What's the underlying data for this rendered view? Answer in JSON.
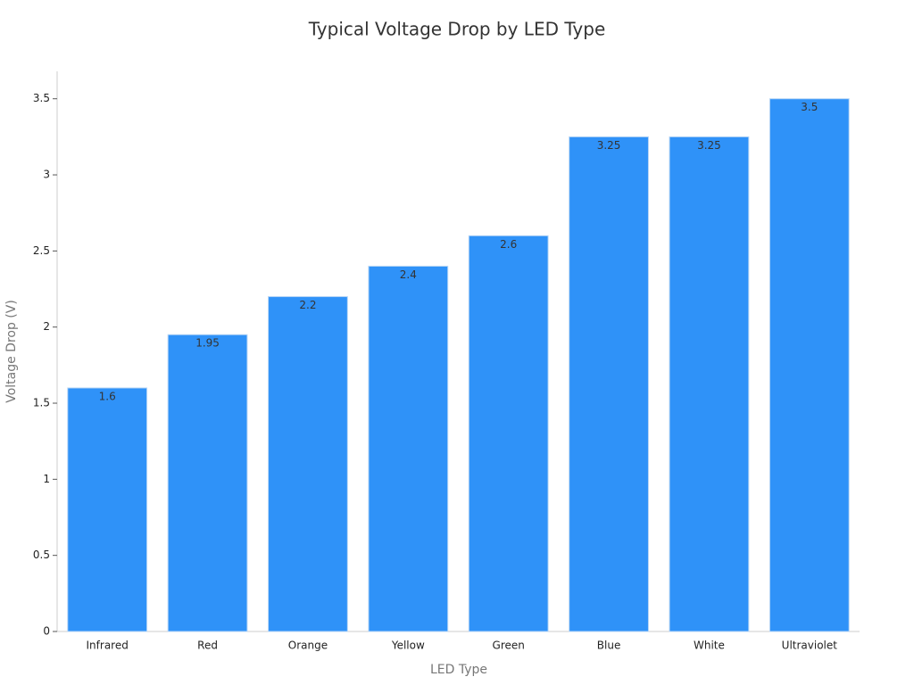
{
  "chart_data": {
    "type": "bar",
    "title": "Typical Voltage Drop by LED Type",
    "x_label": "LED Type",
    "y_label": "Voltage Drop (V)",
    "categories": [
      "Infrared",
      "Red",
      "Orange",
      "Yellow",
      "Green",
      "Blue",
      "White",
      "Ultraviolet"
    ],
    "values": [
      1.6,
      1.95,
      2.2,
      2.4,
      2.6,
      3.25,
      3.25,
      3.5
    ],
    "color": "#2f92f8",
    "ylim": [
      0,
      3.68
    ],
    "yticks": [
      0,
      0.5,
      1,
      1.5,
      2,
      2.5,
      3,
      3.5
    ],
    "grid": false,
    "data_labels": true
  }
}
